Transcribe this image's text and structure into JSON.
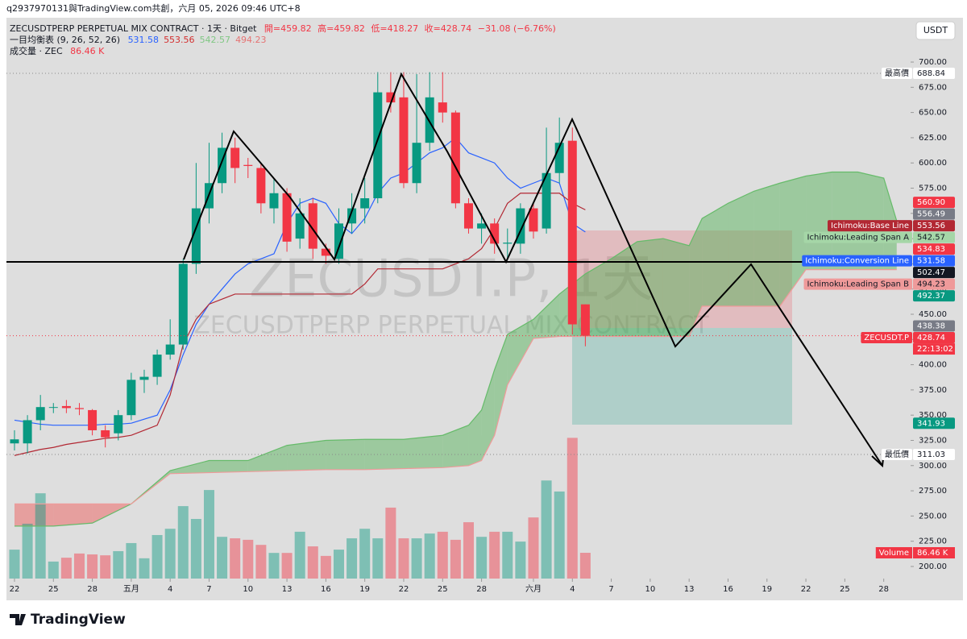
{
  "header": {
    "credit": "q2937970131與TradingView.com共創，六月 05, 2026 09:46 UTC+8",
    "currency": "USDT"
  },
  "legend": {
    "symbol": "ZECUSDTPERP PERPETUAL MIX CONTRACT · 1天 · Bitget",
    "ohlc": [
      "開=459.82",
      "高=459.82",
      "低=418.27",
      "收=428.74",
      "−31.08 (−6.76%)"
    ],
    "ichimoku": "一目均衡表 (9, 26, 52, 26)",
    "ichimoku_values": [
      {
        "label": "531.58",
        "color": "#2962ff"
      },
      {
        "label": "553.56",
        "color": "#d32f2f"
      },
      {
        "label": "542.57",
        "color": "#81c784"
      },
      {
        "label": "494.23",
        "color": "#e57373"
      }
    ],
    "volume": "成交量 · ZEC",
    "volume_value": "86.46 K"
  },
  "watermark": [
    "ZECUSDT.P, 1天",
    "ZECUSDTPERP PERPETUAL MIX CONTRACT"
  ],
  "logo": "TradingView",
  "chart_data": {
    "type": "candlestick",
    "up_color": "#089981",
    "down_color": "#f23645",
    "open": [
      322,
      322,
      345,
      358,
      359,
      357,
      355,
      335,
      332,
      350,
      385,
      388,
      410,
      420,
      500,
      555,
      580,
      615,
      598,
      595,
      555,
      570,
      525,
      560,
      515,
      505,
      540,
      555,
      565,
      670,
      665,
      580,
      620,
      660,
      650,
      560,
      535,
      540,
      520,
      520,
      555,
      535,
      590,
      622,
      459.82
    ],
    "high": [
      335,
      350,
      370,
      362,
      365,
      362,
      356,
      340,
      355,
      392,
      395,
      415,
      445,
      505,
      600,
      620,
      630,
      625,
      605,
      600,
      585,
      575,
      565,
      565,
      520,
      555,
      570,
      585,
      690,
      690,
      690,
      688,
      690,
      690,
      652,
      565,
      550,
      545,
      535,
      560,
      560,
      635,
      645,
      635,
      459.82
    ],
    "low": [
      315,
      312,
      335,
      352,
      352,
      350,
      330,
      318,
      325,
      345,
      372,
      380,
      405,
      415,
      490,
      540,
      570,
      580,
      585,
      550,
      540,
      512,
      515,
      505,
      500,
      500,
      530,
      540,
      560,
      650,
      575,
      570,
      612,
      640,
      555,
      530,
      520,
      510,
      505,
      510,
      525,
      530,
      580,
      430,
      418.27
    ],
    "close": [
      326,
      345,
      358,
      358,
      357,
      356,
      335,
      328,
      350,
      385,
      388,
      410,
      420,
      500,
      555,
      580,
      615,
      595,
      597,
      560,
      570,
      522,
      550,
      515,
      508,
      540,
      555,
      565,
      670,
      660,
      580,
      620,
      665,
      650,
      560,
      535,
      540,
      520,
      521,
      555,
      532,
      590,
      620,
      440,
      428.74
    ],
    "volume": {
      "values": [
        97,
        184,
        286,
        57,
        70,
        84,
        81,
        78,
        92,
        119,
        68,
        146,
        167,
        243,
        200,
        297,
        140,
        135,
        130,
        113,
        86,
        86,
        157,
        108,
        76,
        97,
        135,
        167,
        135,
        238,
        135,
        135,
        151,
        157,
        130,
        189,
        140,
        157,
        157,
        124,
        205,
        329,
        292,
        472,
        86.46
      ]
    },
    "volume_label": {
      "name": "Volume",
      "label": "86.46 K",
      "color": "#f23645"
    },
    "series": [
      {
        "color": "#2962ff",
        "values": [
          345,
          343,
          341,
          340,
          340,
          340,
          340,
          341,
          341,
          342,
          346,
          350,
          375,
          410,
          440,
          460,
          475,
          490,
          500,
          505,
          510,
          540,
          560,
          565,
          560,
          540,
          530,
          545,
          570,
          585,
          590,
          600,
          610,
          615,
          625,
          610,
          605,
          600,
          585,
          575,
          580,
          585,
          580,
          540,
          531.58
        ]
      },
      {
        "color": "#b22833",
        "values": [
          310,
          313,
          316,
          318,
          321,
          323,
          325,
          327,
          328,
          330,
          335,
          340,
          370,
          420,
          445,
          460,
          465,
          470,
          470,
          470,
          470,
          470,
          470,
          470,
          470,
          470,
          470,
          480,
          495,
          495,
          495,
          495,
          495,
          495,
          500,
          505,
          515,
          535,
          560,
          570,
          570,
          570,
          570,
          560,
          553.56
        ]
      },
      {
        "color": "#66bb6a",
        "x": [
          0,
          3,
          6,
          9,
          12,
          15,
          18,
          21,
          24,
          27,
          30,
          33,
          35,
          36,
          37,
          38,
          40,
          42,
          44,
          46,
          48,
          50,
          52,
          53,
          55,
          57,
          59,
          61,
          63,
          65,
          67,
          68
        ],
        "values": [
          240,
          240,
          243,
          262,
          295,
          305,
          305,
          320,
          325,
          326,
          326,
          330,
          340,
          355,
          395,
          430,
          445,
          470,
          490,
          505,
          522,
          525,
          518,
          545,
          560,
          572,
          580,
          587,
          591,
          591,
          585,
          542.57
        ]
      },
      {
        "color": "#ef9a9a",
        "x": [
          0,
          3,
          6,
          9,
          12,
          15,
          18,
          21,
          24,
          27,
          30,
          33,
          35,
          36,
          37,
          38,
          40,
          42,
          44,
          46,
          48,
          50,
          52,
          53,
          55,
          57,
          59,
          61,
          63,
          65,
          67,
          68
        ],
        "values": [
          262,
          262,
          262,
          262,
          292,
          293,
          294,
          295,
          296,
          296,
          297,
          298,
          300,
          305,
          330,
          380,
          426,
          428,
          428,
          428,
          428,
          428,
          428,
          458,
          458,
          458,
          458,
          494.23,
          494.23,
          494.23,
          494.23,
          494.23
        ]
      }
    ],
    "cloud_up_color": "rgba(76,175,80,0.45)",
    "cloud_down_color": "rgba(239,83,80,0.45)",
    "xlim": [
      -0.62,
      69.07
    ],
    "xticks": [
      {
        "value": 0,
        "label": "22"
      },
      {
        "value": 3,
        "label": "25"
      },
      {
        "value": 6,
        "label": "28"
      },
      {
        "value": 9,
        "label": "五月"
      },
      {
        "value": 12,
        "label": "4"
      },
      {
        "value": 15,
        "label": "7"
      },
      {
        "value": 18,
        "label": "10"
      },
      {
        "value": 21,
        "label": "13"
      },
      {
        "value": 24,
        "label": "16"
      },
      {
        "value": 27,
        "label": "19"
      },
      {
        "value": 30,
        "label": "22"
      },
      {
        "value": 33,
        "label": "25"
      },
      {
        "value": 36,
        "label": "28"
      },
      {
        "value": 40,
        "label": "六月"
      },
      {
        "value": 43,
        "label": "4"
      },
      {
        "value": 46,
        "label": "7"
      },
      {
        "value": 49,
        "label": "10"
      },
      {
        "value": 52,
        "label": "13"
      },
      {
        "value": 55,
        "label": "16"
      },
      {
        "value": 58,
        "label": "19"
      },
      {
        "value": 61,
        "label": "22"
      },
      {
        "value": 64,
        "label": "25"
      },
      {
        "value": 67,
        "label": "28"
      }
    ],
    "ylim": [
      188,
      712
    ],
    "yticks": [
      {
        "value": 200,
        "label": "200.00"
      },
      {
        "value": 225,
        "label": "225.00"
      },
      {
        "value": 250,
        "label": "250.00"
      },
      {
        "value": 275,
        "label": "275.00"
      },
      {
        "value": 300,
        "label": "300.00"
      },
      {
        "value": 325,
        "label": "325.00"
      },
      {
        "value": 350,
        "label": "350.00"
      },
      {
        "value": 375,
        "label": "375.00"
      },
      {
        "value": 400,
        "label": "400.00"
      },
      {
        "value": 425,
        "label": "425.00"
      },
      {
        "value": 450,
        "label": "450.00"
      },
      {
        "value": 475,
        "label": "475.00"
      },
      {
        "value": 500,
        "label": "500.00"
      },
      {
        "value": 525,
        "label": "525.00"
      },
      {
        "value": 550,
        "label": "550.00"
      },
      {
        "value": 575,
        "label": "575.00"
      },
      {
        "value": 600,
        "label": "600.00"
      },
      {
        "value": 625,
        "label": "625.00"
      },
      {
        "value": 650,
        "label": "650.00"
      },
      {
        "value": 675,
        "label": "675.00"
      },
      {
        "value": 700,
        "label": "700.00"
      }
    ],
    "grid": false,
    "price_labels": [
      {
        "name": "最高價",
        "value": 688.84,
        "label": "688.84",
        "color": "#ffffff",
        "dotted": true
      },
      {
        "value": 560.9,
        "label": "560.90",
        "color": "#f23645"
      },
      {
        "value": 556.49,
        "label": "556.49",
        "color": "#787b86"
      },
      {
        "name": "Ichimoku:Base Line",
        "value": 553.56,
        "label": "553.56",
        "color": "#b22833"
      },
      {
        "name": "Ichimoku:Leading Span A",
        "value": 542.57,
        "label": "542.57",
        "color": "#a5d6a7"
      },
      {
        "value": 534.83,
        "label": "534.83",
        "color": "#f23645"
      },
      {
        "name": "Ichimoku:Conversion Line",
        "value": 531.58,
        "label": "531.58",
        "color": "#2962ff"
      },
      {
        "value": 502.47,
        "label": "502.47",
        "color": "#131722"
      },
      {
        "name": "Ichimoku:Leading Span B",
        "value": 494.23,
        "label": "494.23",
        "color": "#ef9a9a"
      },
      {
        "value": 492.37,
        "label": "492.37",
        "color": "#089981"
      },
      {
        "value": 438.38,
        "label": "438.38",
        "color": "#787b86"
      },
      {
        "name": "ZECUSDT.P",
        "value": 428.74,
        "label": "428.74",
        "color": "#f23645",
        "countdown": "22:13:02",
        "dotted": true
      },
      {
        "value": 341.93,
        "label": "341.93",
        "color": "#089981"
      },
      {
        "name": "最低價",
        "value": 311.03,
        "label": "311.03",
        "color": "#ffffff",
        "dotted": true
      }
    ]
  }
}
